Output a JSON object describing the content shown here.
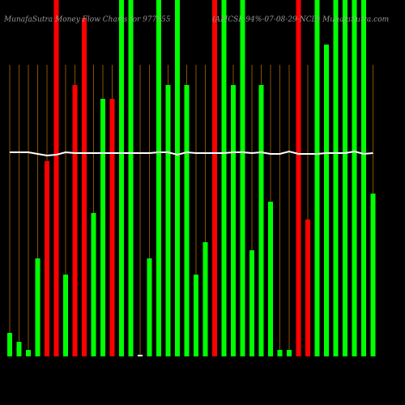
{
  "chart_data": {
    "type": "bar",
    "title": "MunafaSutra Money Flow Charts for 977655",
    "subtitle": "(AMCSL-94%-07-08-29-NCD) MunafaSutra.com",
    "categories": [
      null,
      null,
      null,
      null,
      null,
      null,
      null,
      null,
      null,
      null,
      null,
      null,
      null,
      null,
      null,
      null,
      null,
      null,
      null,
      null,
      null,
      null,
      null,
      null,
      null,
      null,
      null,
      null,
      null,
      null,
      null,
      null,
      null,
      null,
      null,
      null,
      null,
      null,
      null,
      null
    ],
    "values": [
      29,
      18,
      8,
      121,
      241,
      440,
      101,
      335,
      418,
      177,
      318,
      318,
      440,
      440,
      2,
      121,
      440,
      335,
      440,
      335,
      101,
      141,
      440,
      440,
      335,
      440,
      131,
      335,
      191,
      8,
      8,
      440,
      169,
      440,
      385,
      440,
      440,
      440,
      440,
      201
    ],
    "colors": [
      "#00ff00",
      "#00ff00",
      "#00ff00",
      "#00ff00",
      "#ff0000",
      "#ff0000",
      "#00ff00",
      "#ff0000",
      "#ff0000",
      "#00ff00",
      "#00ff00",
      "#ff0000",
      "#00ff00",
      "#00ff00",
      "#ffffff",
      "#00ff00",
      "#00ff00",
      "#00ff00",
      "#00ff00",
      "#00ff00",
      "#00ff00",
      "#00ff00",
      "#ff0000",
      "#00ff00",
      "#00ff00",
      "#00ff00",
      "#00ff00",
      "#00ff00",
      "#00ff00",
      "#00ff00",
      "#00ff00",
      "#ff0000",
      "#ff0000",
      "#00ff00",
      "#00ff00",
      "#00ff00",
      "#00ff00",
      "#00ff00",
      "#00ff00",
      "#00ff00"
    ],
    "line": {
      "color": "#ffffff",
      "values": [
        252,
        252,
        252,
        250,
        248,
        249,
        252,
        251,
        251,
        251,
        251,
        251,
        251,
        251,
        251,
        251,
        252,
        252,
        249,
        252,
        251,
        251,
        251,
        251,
        252,
        252,
        251,
        252,
        250,
        250,
        253,
        250,
        250,
        250,
        251,
        251,
        251,
        253,
        250,
        251
      ]
    },
    "ylim": [
      0,
      440
    ]
  }
}
